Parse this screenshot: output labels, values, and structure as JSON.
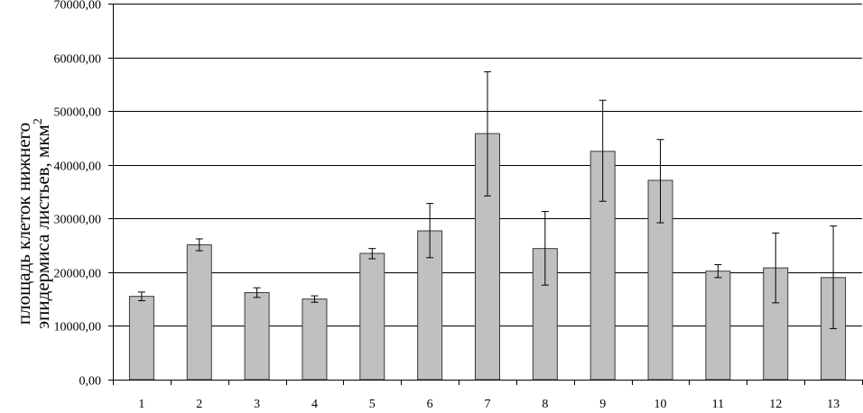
{
  "chart_data": {
    "type": "bar",
    "categories": [
      "1",
      "2",
      "3",
      "4",
      "5",
      "6",
      "7",
      "8",
      "9",
      "10",
      "11",
      "12",
      "13"
    ],
    "values": [
      15500,
      25100,
      16200,
      15000,
      23500,
      27700,
      45800,
      24400,
      42500,
      37100,
      20200,
      20800,
      19000
    ],
    "error_low": [
      14700,
      24000,
      15300,
      14400,
      22500,
      22700,
      34200,
      17600,
      33200,
      29200,
      19000,
      14300,
      9500
    ],
    "error_high": [
      16300,
      26200,
      17100,
      15600,
      24400,
      32800,
      57300,
      31300,
      52000,
      44700,
      21400,
      27300,
      28600
    ],
    "ylabel_line1": "площадь клеток нижнего",
    "ylabel_line2": "эпидермиса листьев, мкм",
    "ylabel_sup": "2",
    "ylim": [
      0,
      70000
    ],
    "ytick_values": [
      0,
      10000,
      20000,
      30000,
      40000,
      50000,
      60000,
      70000
    ],
    "ytick_labels": [
      "0,00",
      "10000,00",
      "20000,00",
      "30000,00",
      "40000,00",
      "50000,00",
      "60000,00",
      "70000,00"
    ],
    "grid": true,
    "colors": {
      "bar": "#c0c0c0",
      "bar_stroke": "#3a3a3a",
      "grid": "#000000",
      "axis": "#000000"
    }
  }
}
